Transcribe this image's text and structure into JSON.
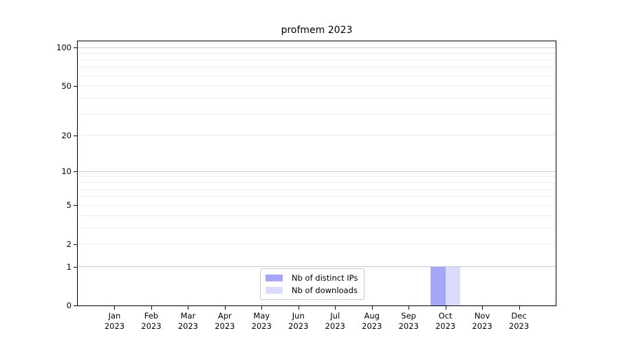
{
  "chart_data": {
    "type": "bar",
    "title": "profmem 2023",
    "categories": [
      "Jan",
      "Feb",
      "Mar",
      "Apr",
      "May",
      "Jun",
      "Jul",
      "Aug",
      "Sep",
      "Oct",
      "Nov",
      "Dec"
    ],
    "category_year": "2023",
    "series": [
      {
        "name": "Nb of distinct IPs",
        "color": "#a6a6f8",
        "values": [
          0,
          0,
          0,
          0,
          0,
          0,
          0,
          0,
          0,
          1,
          0,
          0
        ]
      },
      {
        "name": "Nb of downloads",
        "color": "#dbdbfa",
        "values": [
          0,
          0,
          0,
          0,
          0,
          0,
          0,
          0,
          0,
          1,
          0,
          0
        ]
      }
    ],
    "y_axis": {
      "scale": "log1p",
      "tick_values": [
        0,
        1,
        2,
        5,
        10,
        20,
        50,
        100
      ],
      "major_gridlines": [
        1,
        10,
        100
      ],
      "minor_gridlines": [
        2,
        3,
        4,
        5,
        6,
        7,
        8,
        9,
        20,
        30,
        40,
        50,
        60,
        70,
        80,
        90
      ],
      "max": 112
    },
    "x_axis": {
      "domain_slots": 13
    },
    "bar_width_fraction": 0.4,
    "colors": {
      "major_grid": "#c9c9c9",
      "minor_grid": "#ececec",
      "axis": "#000000",
      "text": "#000000"
    },
    "legend": {
      "position": "lower center-left inside plot",
      "border_color": "#c9c9c9"
    },
    "grid": true
  }
}
